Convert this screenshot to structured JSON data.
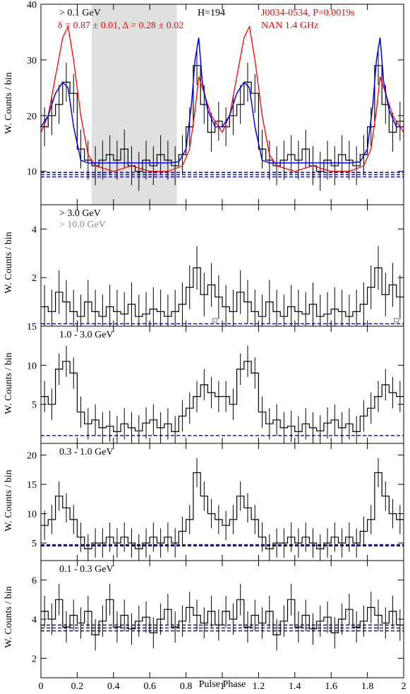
{
  "figure": {
    "xlabel": "Pulse Phase",
    "ylabel": "W. Counts / bin"
  },
  "chart_data": [
    {
      "type": "line",
      "panel": "top",
      "labels": {
        "energy": "> 0.1 GeV",
        "fit": "δ = 0.87 ± 0.01, Δ = 0.28 ± 0.02",
        "htest": "H=194",
        "pulsar": "J0034-0534, P=0.0019s",
        "radio": "NAN 1.4 GHz"
      },
      "colors": {
        "gamma": "#000000",
        "radio": "#ff0000",
        "model": "#0000ff",
        "background": "#00008b",
        "offpulse": "#e0e0e0"
      },
      "xlim": [
        0,
        2
      ],
      "ylim": [
        4,
        40
      ],
      "yticks": [
        10,
        20,
        30,
        40
      ],
      "offpulse_phase": [
        0.28,
        0.75
      ],
      "background_level": [
        9.0,
        9.4,
        9.8
      ],
      "gamma_x": [
        0.02,
        0.06,
        0.1,
        0.14,
        0.18,
        0.22,
        0.26,
        0.3,
        0.34,
        0.38,
        0.42,
        0.46,
        0.5,
        0.54,
        0.58,
        0.62,
        0.66,
        0.7,
        0.74,
        0.78,
        0.82,
        0.86,
        0.9,
        0.94,
        0.98
      ],
      "gamma_y": [
        18,
        20,
        22,
        26,
        24,
        14,
        12,
        11,
        12,
        13,
        12,
        14,
        11,
        10,
        12,
        11,
        13,
        12,
        11,
        13,
        18,
        29,
        22,
        17,
        19
      ],
      "gamma_err": 3.5,
      "radio_x": [
        0,
        0.04,
        0.08,
        0.12,
        0.15,
        0.18,
        0.22,
        0.26,
        0.3,
        0.4,
        0.5,
        0.6,
        0.7,
        0.78,
        0.82,
        0.85,
        0.87,
        0.9,
        0.94,
        1.0
      ],
      "radio_y": [
        17,
        20,
        27,
        34,
        36,
        30,
        20,
        13,
        11,
        10,
        11,
        10,
        10,
        11,
        14,
        21,
        27,
        24,
        20,
        17
      ],
      "model_x": [
        0,
        0.04,
        0.08,
        0.12,
        0.15,
        0.18,
        0.22,
        0.26,
        0.3,
        0.5,
        0.7,
        0.76,
        0.8,
        0.83,
        0.85,
        0.87,
        0.89,
        0.92,
        0.96,
        1.0
      ],
      "model_y": [
        18,
        20,
        24,
        26,
        25,
        18,
        12,
        11.5,
        11.5,
        11.5,
        11.5,
        11.7,
        14,
        22,
        30,
        34,
        26,
        21,
        18,
        18
      ]
    },
    {
      "type": "line",
      "panel": "p2",
      "labels": {
        "energy": "> 3.0 GeV",
        "energy2": "> 10.0 GeV"
      },
      "colors": {
        "gamma": "#000000",
        "secondary": "#888888",
        "background": "#00008b"
      },
      "xlim": [
        0,
        2
      ],
      "ylim": [
        0,
        5
      ],
      "yticks": [
        2,
        4
      ],
      "ytick_labels": [
        "2",
        "4"
      ],
      "background_level": [
        0.1
      ],
      "gamma_x": [
        0.02,
        0.06,
        0.1,
        0.14,
        0.18,
        0.22,
        0.26,
        0.3,
        0.34,
        0.38,
        0.42,
        0.46,
        0.5,
        0.54,
        0.58,
        0.62,
        0.66,
        0.7,
        0.74,
        0.78,
        0.82,
        0.86,
        0.9,
        0.94,
        0.98
      ],
      "gamma_y": [
        0.8,
        0.6,
        1.4,
        1.0,
        0.6,
        0.4,
        1.0,
        0.6,
        0.4,
        0.8,
        0.6,
        0.5,
        0.9,
        0.4,
        0.5,
        0.7,
        0.6,
        0.4,
        0.6,
        0.9,
        1.6,
        2.4,
        1.3,
        1.7,
        1.2
      ],
      "gamma_err": 0.9,
      "gamma2_x": [
        0.96
      ],
      "gamma2_y": [
        0.2
      ],
      "gamma2_err": 0.2
    },
    {
      "type": "line",
      "panel": "p3",
      "labels": {
        "energy": "1.0 - 3.0 GeV"
      },
      "colors": {
        "gamma": "#000000",
        "background": "#00008b"
      },
      "xlim": [
        0,
        2
      ],
      "ylim": [
        0,
        15
      ],
      "yticks": [
        5,
        10,
        15
      ],
      "ytick_labels": [
        "5",
        "10",
        "15"
      ],
      "background_level": [
        1.0
      ],
      "gamma_x": [
        0.02,
        0.06,
        0.1,
        0.14,
        0.18,
        0.22,
        0.26,
        0.3,
        0.34,
        0.38,
        0.42,
        0.46,
        0.5,
        0.54,
        0.58,
        0.62,
        0.66,
        0.7,
        0.74,
        0.78,
        0.82,
        0.86,
        0.9,
        0.94,
        0.98
      ],
      "gamma_y": [
        6.0,
        5.0,
        9.5,
        10.5,
        9.0,
        4.0,
        2.5,
        3.0,
        2.0,
        2.2,
        1.5,
        2.5,
        2.0,
        1.6,
        2.6,
        3.0,
        2.0,
        2.5,
        1.5,
        3.5,
        4.5,
        6.0,
        7.5,
        6.5,
        6.0
      ],
      "gamma_err": 2.0
    },
    {
      "type": "line",
      "panel": "p4",
      "labels": {
        "energy": "0.3 - 1.0 GeV"
      },
      "colors": {
        "gamma": "#000000",
        "background": "#00008b"
      },
      "xlim": [
        0,
        2
      ],
      "ylim": [
        2,
        22
      ],
      "yticks": [
        5,
        10,
        15,
        20
      ],
      "ytick_labels": [
        "5",
        "10",
        "15",
        "20"
      ],
      "background_level": [
        4.6
      ],
      "gamma_x": [
        0.02,
        0.06,
        0.1,
        0.14,
        0.18,
        0.22,
        0.26,
        0.3,
        0.34,
        0.38,
        0.42,
        0.46,
        0.5,
        0.54,
        0.58,
        0.62,
        0.66,
        0.7,
        0.74,
        0.78,
        0.82,
        0.86,
        0.9,
        0.94,
        0.98
      ],
      "gamma_y": [
        8,
        9,
        13,
        11,
        9,
        6,
        4,
        5,
        5,
        6,
        5,
        6,
        5,
        4,
        5,
        6,
        5,
        6,
        5,
        7,
        9,
        17,
        13,
        10,
        9
      ],
      "gamma_err": 2.5
    },
    {
      "type": "line",
      "panel": "p5",
      "labels": {
        "energy": "0.1 - 0.3 GeV"
      },
      "colors": {
        "gamma": "#000000",
        "background": "#00008b"
      },
      "xlim": [
        0,
        2
      ],
      "ylim": [
        1,
        7
      ],
      "yticks": [
        2,
        4,
        6
      ],
      "ytick_labels": [
        "2",
        "4",
        "6"
      ],
      "background_level": [
        3.4,
        3.55,
        3.7
      ],
      "gamma_x": [
        0.02,
        0.06,
        0.1,
        0.14,
        0.18,
        0.22,
        0.26,
        0.3,
        0.34,
        0.38,
        0.42,
        0.46,
        0.5,
        0.54,
        0.58,
        0.62,
        0.66,
        0.7,
        0.74,
        0.78,
        0.82,
        0.86,
        0.9,
        0.94,
        0.98
      ],
      "gamma_y": [
        4.4,
        4.0,
        5.0,
        3.6,
        4.2,
        3.8,
        4.4,
        3.2,
        3.9,
        5.0,
        3.6,
        4.2,
        3.5,
        3.9,
        4.1,
        3.3,
        4.0,
        4.5,
        3.6,
        3.9,
        4.6,
        4.2,
        3.8,
        4.4,
        3.7
      ],
      "gamma_err": 0.8
    }
  ],
  "xaxis": {
    "ticks": [
      0,
      0.2,
      0.4,
      0.6,
      0.8,
      1,
      1.2,
      1.4,
      1.6,
      1.8,
      2
    ],
    "tick_labels": [
      "0",
      "0.2",
      "0.4",
      "0.6",
      "0.8",
      "1",
      "1.2",
      "1.4",
      "1.6",
      "1.8",
      "2"
    ]
  }
}
